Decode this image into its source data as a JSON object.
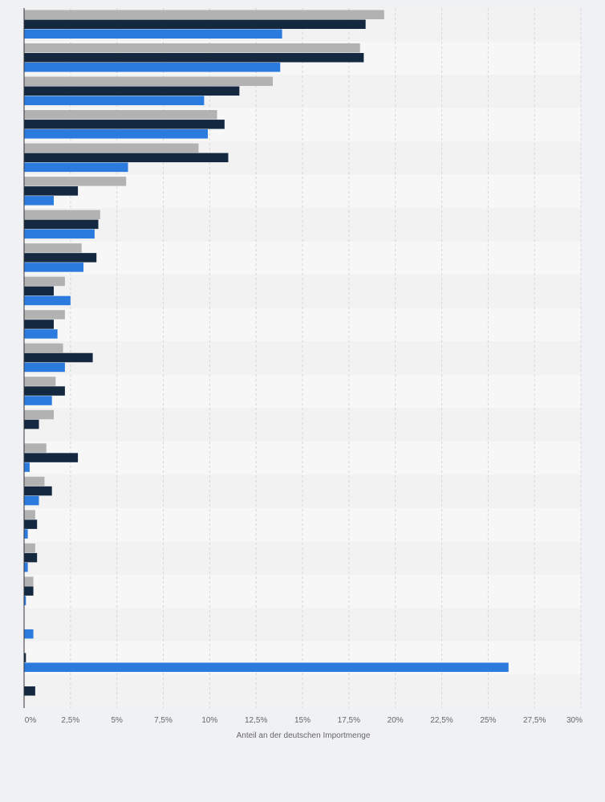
{
  "chart_data": {
    "type": "bar",
    "orientation": "horizontal",
    "xlabel": "Anteil an der deutschen Importmenge",
    "xlim": [
      0,
      30
    ],
    "xticks": [
      "0%",
      "2,5%",
      "5%",
      "7,5%",
      "10%",
      "12,5%",
      "15%",
      "17,5%",
      "20%",
      "22,5%",
      "25%",
      "27,5%",
      "30%"
    ],
    "grid": true,
    "legend": "none",
    "category_count": 21,
    "series": [
      {
        "color": "#b2b2b2",
        "values": [
          19.4,
          18.1,
          13.4,
          10.4,
          9.4,
          5.5,
          4.1,
          3.1,
          2.2,
          2.2,
          2.1,
          1.7,
          1.6,
          1.2,
          1.1,
          0.6,
          0.6,
          0.5,
          0,
          0,
          0
        ]
      },
      {
        "color": "#14283f",
        "values": [
          18.4,
          18.3,
          11.6,
          10.8,
          11.0,
          2.9,
          4.0,
          3.9,
          1.6,
          1.6,
          3.7,
          2.2,
          0.8,
          2.9,
          1.5,
          0.7,
          0.7,
          0.5,
          0,
          0.1,
          0.6
        ]
      },
      {
        "color": "#2b7bdf",
        "values": [
          13.9,
          13.8,
          9.7,
          9.9,
          5.6,
          1.6,
          3.8,
          3.2,
          2.5,
          1.8,
          2.2,
          1.5,
          0,
          0.3,
          0.8,
          0.2,
          0.2,
          0.1,
          0.5,
          26.1,
          0
        ]
      }
    ]
  }
}
